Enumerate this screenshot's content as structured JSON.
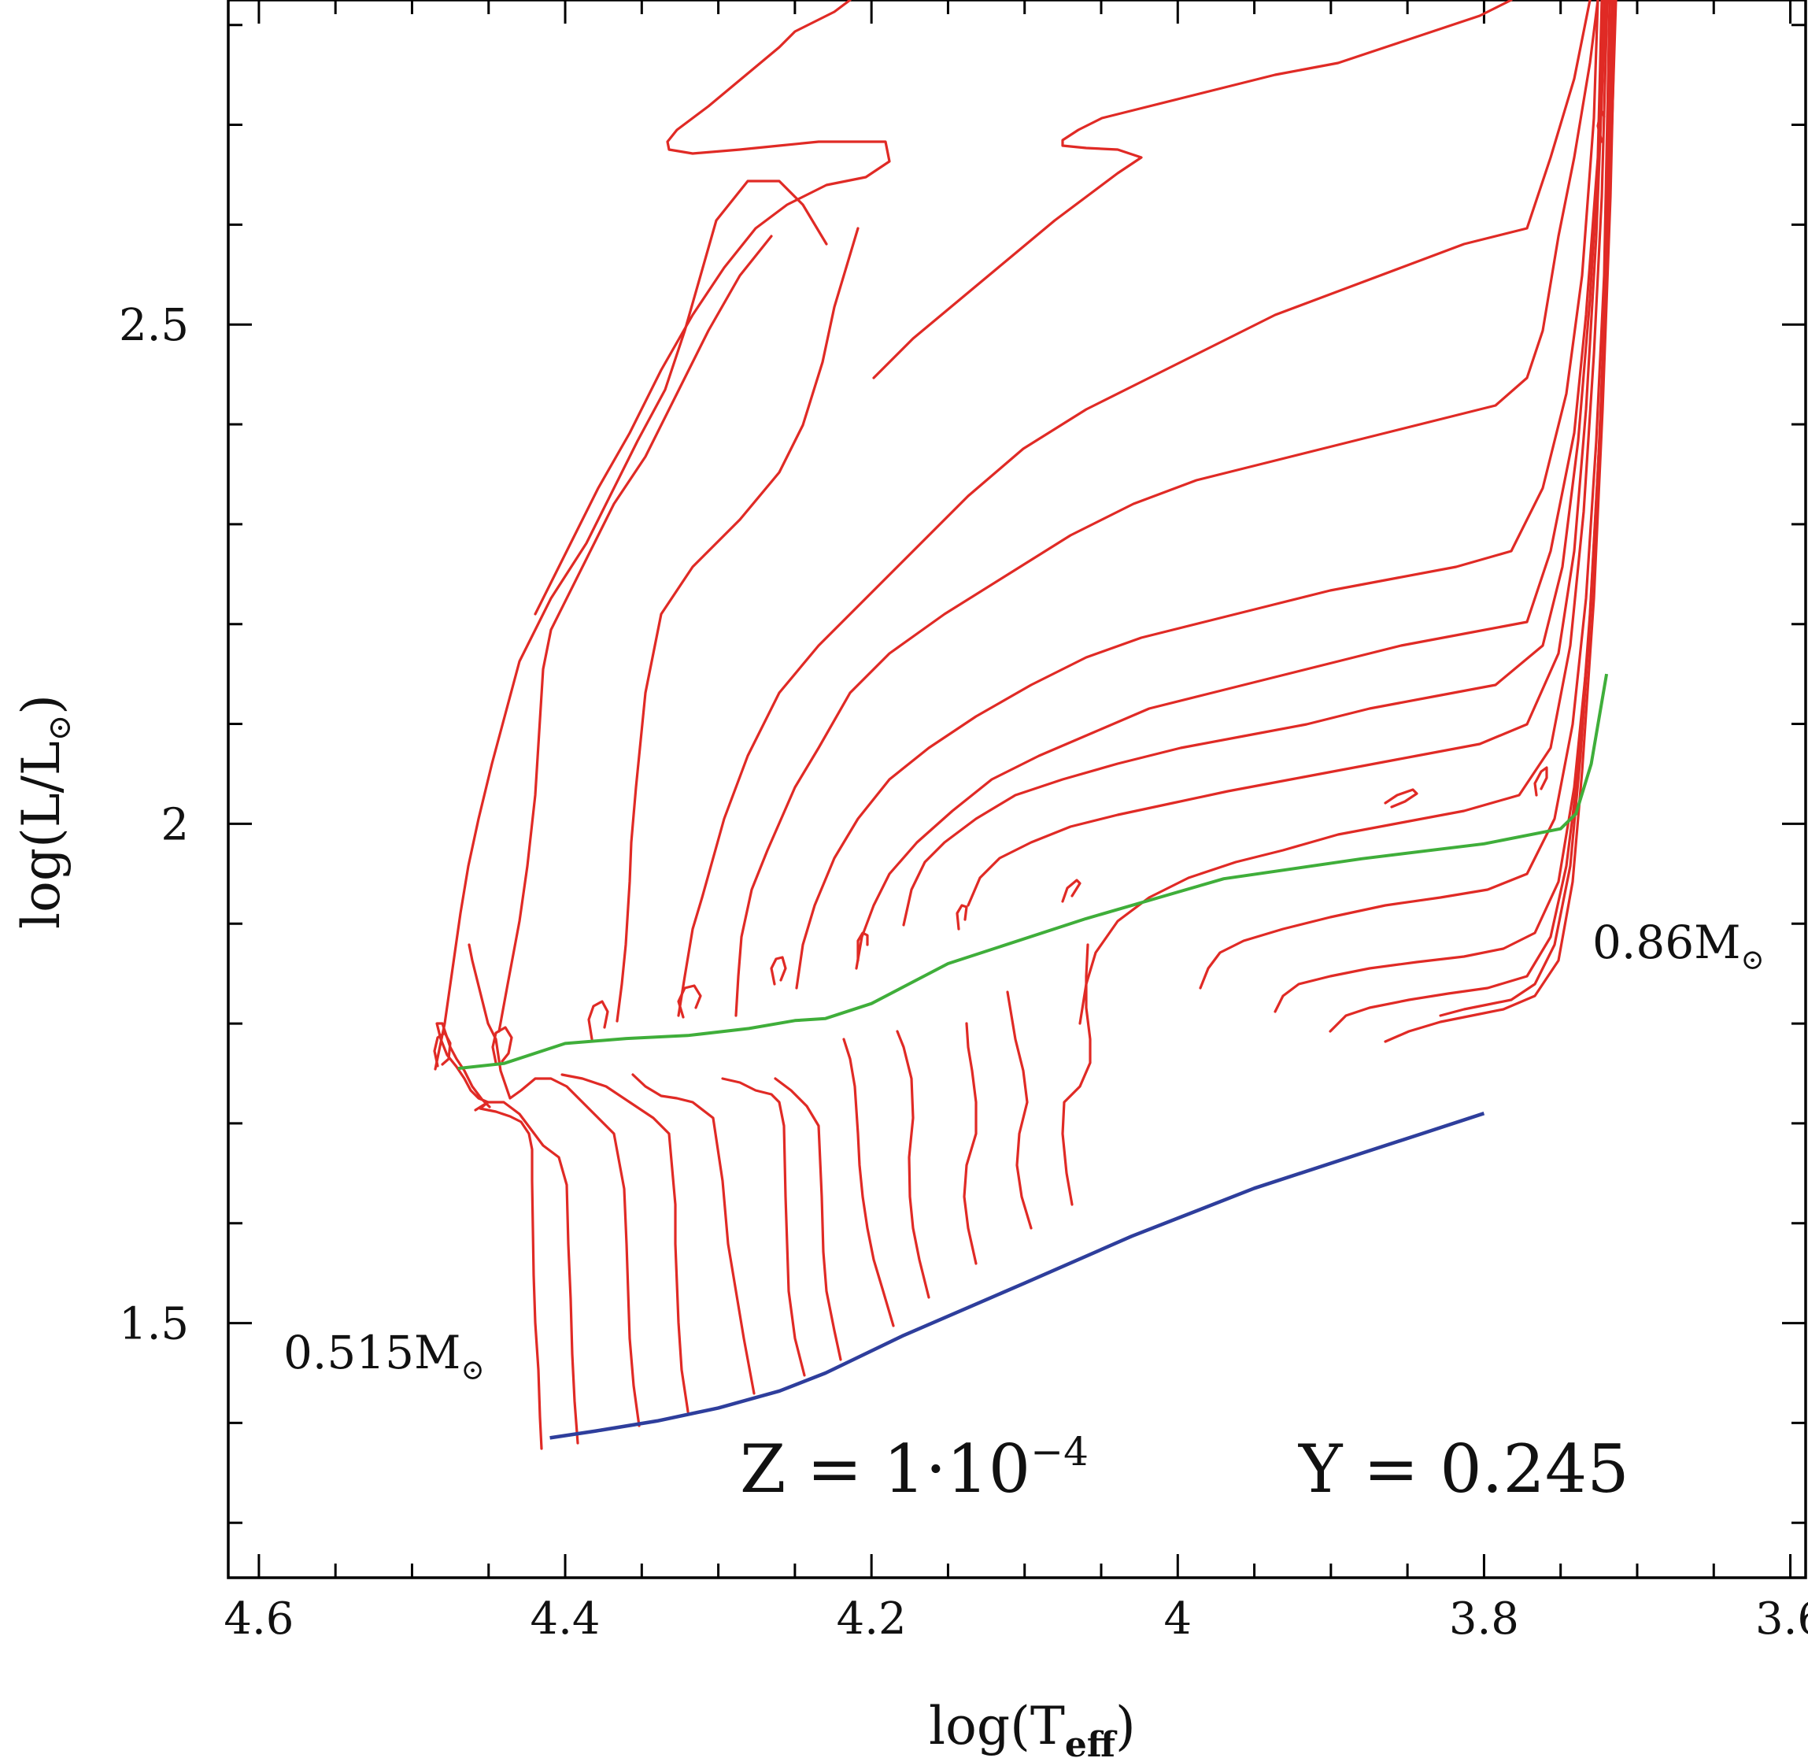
{
  "colors": {
    "tracks": "#e02a25",
    "green_line": "#3fae3a",
    "blue_line": "#2e3e9c",
    "frame": "#000000"
  },
  "chart_data": {
    "type": "line",
    "title": "",
    "xlabel": "log(T",
    "xlabel_sub": "eff",
    "xlabel_close": ")",
    "ylabel_pre": "log(L/L",
    "ylabel_sub": "⊙",
    "ylabel_close": ")",
    "xlim": [
      4.62,
      3.59
    ],
    "ylim": [
      1.245,
      2.825
    ],
    "x_ticks": [
      {
        "value": 4.6,
        "label": "4.6"
      },
      {
        "value": 4.4,
        "label": "4.4"
      },
      {
        "value": 4.2,
        "label": "4.2"
      },
      {
        "value": 4.0,
        "label": "4"
      },
      {
        "value": 3.8,
        "label": "3.8"
      },
      {
        "value": 3.6,
        "label": "3.6"
      }
    ],
    "y_ticks": [
      {
        "value": 1.5,
        "label": "1.5"
      },
      {
        "value": 2.0,
        "label": "2"
      },
      {
        "value": 2.5,
        "label": "2.5"
      }
    ],
    "annotations": {
      "low_mass_label": "0.515M",
      "high_mass_label": "0.86M",
      "sun_symbol": "⊙",
      "composition_z": "Z = 1·10",
      "composition_z_exp": "−4",
      "composition_y": "Y = 0.245"
    },
    "series": [
      {
        "name": "green-line",
        "points": [
          [
            4.47,
            1.755
          ],
          [
            4.44,
            1.76
          ],
          [
            4.4,
            1.78
          ],
          [
            4.36,
            1.785
          ],
          [
            4.32,
            1.788
          ],
          [
            4.28,
            1.795
          ],
          [
            4.25,
            1.803
          ],
          [
            4.23,
            1.805
          ],
          [
            4.2,
            1.82
          ],
          [
            4.15,
            1.86
          ],
          [
            4.06,
            1.905
          ],
          [
            3.97,
            1.945
          ],
          [
            3.88,
            1.965
          ],
          [
            3.8,
            1.98
          ],
          [
            3.75,
            1.995
          ],
          [
            3.74,
            2.01
          ],
          [
            3.73,
            2.06
          ],
          [
            3.72,
            2.15
          ]
        ]
      },
      {
        "name": "blue-line",
        "points": [
          [
            4.41,
            1.385
          ],
          [
            4.38,
            1.392
          ],
          [
            4.34,
            1.402
          ],
          [
            4.3,
            1.415
          ],
          [
            4.26,
            1.432
          ],
          [
            4.23,
            1.45
          ],
          [
            4.18,
            1.487
          ],
          [
            4.1,
            1.54
          ],
          [
            4.03,
            1.587
          ],
          [
            4.0,
            1.605
          ],
          [
            3.95,
            1.635
          ],
          [
            3.88,
            1.67
          ],
          [
            3.84,
            1.69
          ],
          [
            3.8,
            1.71
          ]
        ]
      },
      {
        "name": "track-1",
        "points": [
          [
            4.41,
            1.385
          ],
          [
            4.405,
            1.48
          ],
          [
            4.4,
            1.6
          ],
          [
            4.39,
            1.66
          ],
          [
            4.38,
            1.68
          ],
          [
            4.37,
            1.685
          ],
          [
            4.35,
            1.69
          ],
          [
            4.33,
            1.692
          ],
          [
            4.32,
            1.695
          ],
          [
            4.31,
            1.698
          ],
          [
            4.3,
            1.702
          ],
          [
            4.29,
            1.705
          ],
          [
            4.28,
            1.72
          ],
          [
            4.27,
            1.735
          ],
          [
            4.265,
            1.745
          ],
          [
            4.26,
            1.72
          ],
          [
            4.262,
            1.71
          ],
          [
            4.26,
            1.7
          ],
          [
            4.25,
            1.69
          ],
          [
            4.245,
            1.7
          ],
          [
            4.24,
            1.72
          ],
          [
            4.235,
            1.72
          ],
          [
            4.23,
            1.7
          ],
          [
            4.22,
            1.695
          ],
          [
            4.21,
            1.7
          ],
          [
            4.2,
            1.725
          ],
          [
            4.195,
            1.745
          ],
          [
            4.19,
            1.76
          ],
          [
            4.185,
            1.775
          ],
          [
            4.18,
            1.76
          ],
          [
            4.175,
            1.75
          ],
          [
            4.17,
            1.76
          ],
          [
            4.165,
            1.77
          ],
          [
            4.16,
            1.79
          ],
          [
            4.14,
            1.85
          ],
          [
            4.09,
            1.95
          ],
          [
            4.05,
            2.03
          ],
          [
            4.01,
            2.12
          ],
          [
            3.98,
            2.2
          ],
          [
            3.96,
            2.25
          ],
          [
            3.94,
            2.3
          ],
          [
            3.92,
            2.35
          ],
          [
            3.9,
            2.39
          ],
          [
            3.89,
            2.42
          ],
          [
            3.88,
            2.44
          ],
          [
            3.87,
            2.46
          ],
          [
            3.86,
            2.48
          ],
          [
            3.85,
            2.5
          ],
          [
            3.84,
            2.51
          ],
          [
            3.82,
            2.52
          ],
          [
            3.8,
            2.53
          ],
          [
            3.78,
            2.545
          ],
          [
            3.76,
            2.56
          ],
          [
            3.74,
            2.58
          ],
          [
            3.73,
            2.6
          ],
          [
            3.72,
            2.63
          ],
          [
            3.71,
            2.66
          ],
          [
            3.7,
            2.7
          ],
          [
            3.695,
            2.75
          ],
          [
            3.69,
            2.8
          ],
          [
            3.69,
            2.825
          ]
        ]
      }
    ]
  }
}
